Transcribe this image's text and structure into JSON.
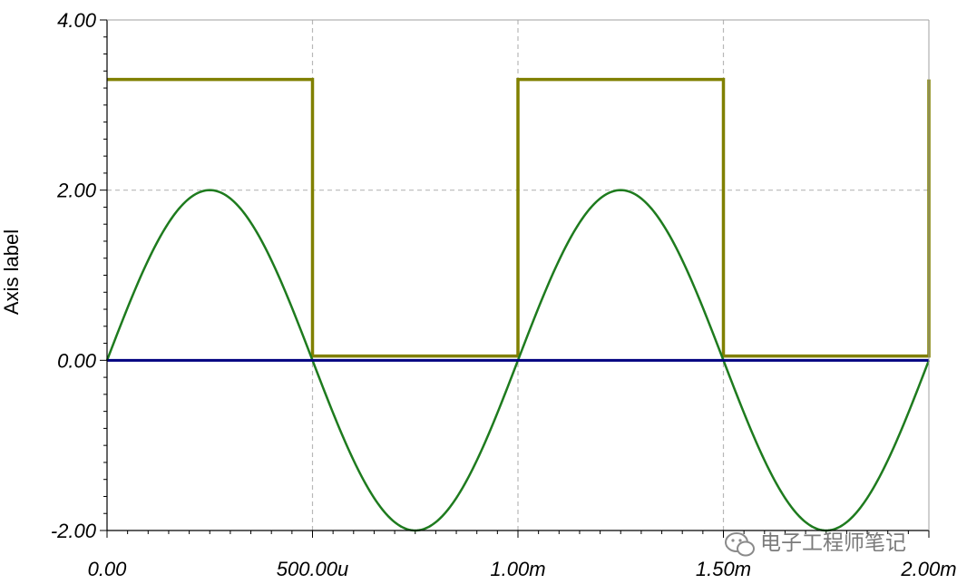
{
  "chart_data": {
    "type": "line",
    "ylabel": "Axis label",
    "xlim": [
      0,
      0.002
    ],
    "ylim": [
      -2,
      4
    ],
    "x_ticks": [
      {
        "value": 0,
        "label": "0.00"
      },
      {
        "value": 0.0005,
        "label": "500.00u"
      },
      {
        "value": 0.001,
        "label": "1.00m"
      },
      {
        "value": 0.0015,
        "label": "1.50m"
      },
      {
        "value": 0.002,
        "label": "2.00m"
      }
    ],
    "y_ticks": [
      {
        "value": -2,
        "label": "-2.00"
      },
      {
        "value": 0,
        "label": "0.00"
      },
      {
        "value": 2,
        "label": "2.00"
      },
      {
        "value": 4,
        "label": "4.00"
      }
    ],
    "grid": "dashed",
    "series": [
      {
        "kind": "square",
        "color": "#808000",
        "high": 3.3,
        "low": 0.05,
        "period": 0.001,
        "duty": 0.5,
        "x": [
          0,
          0.0005,
          0.0005,
          0.001,
          0.001,
          0.0015,
          0.0015,
          0.002,
          0.002
        ],
        "y": [
          3.3,
          3.3,
          0.05,
          0.05,
          3.3,
          3.3,
          0.05,
          0.05,
          3.3
        ]
      },
      {
        "kind": "sine",
        "color": "#1e7b1e",
        "amplitude": 2,
        "offset": 0,
        "period": 0.001
      },
      {
        "kind": "constant",
        "color": "#000080",
        "value": 0
      }
    ]
  },
  "watermark": {
    "text": "电子工程师笔记",
    "icon": "wechat-icon"
  }
}
